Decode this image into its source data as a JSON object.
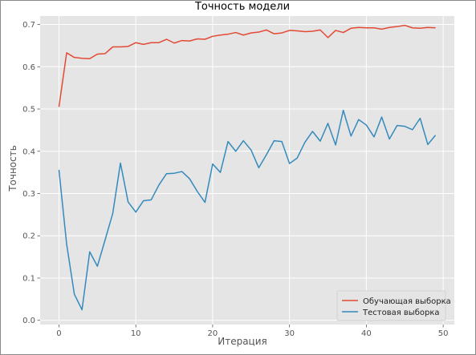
{
  "chart_data": {
    "type": "line",
    "title": "Точность модели",
    "xlabel": "Итерация",
    "ylabel": "Точность",
    "xlim": [
      -2.45,
      51.45
    ],
    "ylim": [
      -0.01,
      0.72
    ],
    "xticks": [
      0,
      10,
      20,
      30,
      40,
      50
    ],
    "yticks": [
      0.0,
      0.1,
      0.2,
      0.3,
      0.4,
      0.5,
      0.6,
      0.7
    ],
    "grid": true,
    "legend_position": "bottom-right",
    "x": [
      0,
      1,
      2,
      3,
      4,
      5,
      6,
      7,
      8,
      9,
      10,
      11,
      12,
      13,
      14,
      15,
      16,
      17,
      18,
      19,
      20,
      21,
      22,
      23,
      24,
      25,
      26,
      27,
      28,
      29,
      30,
      31,
      32,
      33,
      34,
      35,
      36,
      37,
      38,
      39,
      40,
      41,
      42,
      43,
      44,
      45,
      46,
      47,
      48,
      49
    ],
    "series": [
      {
        "name": "Обучающая выборка",
        "color": "#e24a33",
        "values": [
          0.505,
          0.633,
          0.622,
          0.62,
          0.619,
          0.63,
          0.631,
          0.647,
          0.647,
          0.648,
          0.657,
          0.653,
          0.657,
          0.657,
          0.665,
          0.656,
          0.662,
          0.661,
          0.666,
          0.665,
          0.672,
          0.675,
          0.677,
          0.681,
          0.675,
          0.68,
          0.682,
          0.687,
          0.678,
          0.68,
          0.686,
          0.685,
          0.683,
          0.684,
          0.687,
          0.669,
          0.686,
          0.681,
          0.691,
          0.693,
          0.692,
          0.692,
          0.689,
          0.693,
          0.695,
          0.698,
          0.692,
          0.691,
          0.693,
          0.692
        ]
      },
      {
        "name": "Тестовая выборка",
        "color": "#348abd",
        "values": [
          0.356,
          0.18,
          0.062,
          0.025,
          0.162,
          0.128,
          0.19,
          0.253,
          0.372,
          0.28,
          0.256,
          0.283,
          0.285,
          0.32,
          0.347,
          0.348,
          0.352,
          0.335,
          0.305,
          0.279,
          0.37,
          0.35,
          0.423,
          0.4,
          0.425,
          0.403,
          0.361,
          0.392,
          0.425,
          0.423,
          0.371,
          0.384,
          0.421,
          0.447,
          0.424,
          0.466,
          0.415,
          0.497,
          0.436,
          0.475,
          0.462,
          0.434,
          0.481,
          0.429,
          0.461,
          0.459,
          0.451,
          0.478,
          0.416,
          0.438
        ]
      }
    ]
  }
}
